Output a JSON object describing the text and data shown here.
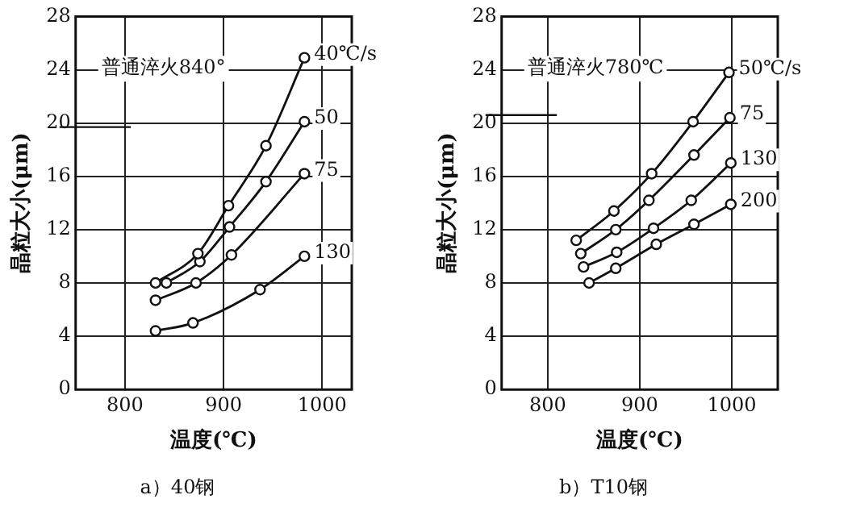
{
  "chart_data": [
    {
      "type": "line",
      "title": "a）40钢",
      "xlabel": "温度(℃)",
      "ylabel": "晶粒大小(μm)",
      "xlim": [
        750,
        1030
      ],
      "xticks": [
        800,
        900,
        1000
      ],
      "ylim": [
        0,
        28
      ],
      "yticks": [
        0,
        4,
        8,
        12,
        16,
        20,
        24,
        28
      ],
      "grid": true,
      "legend": false,
      "marker": "circle",
      "line_style": "solid",
      "ref_lines": [
        {
          "axis": "y",
          "value": 19.7,
          "label": "普通淬火840°"
        }
      ],
      "series": [
        {
          "name": "40℃/s",
          "color": "#111111",
          "x": [
            831,
            874,
            905,
            943,
            982
          ],
          "values": [
            8.0,
            10.2,
            13.8,
            18.3,
            24.9
          ]
        },
        {
          "name": "50",
          "color": "#111111",
          "x": [
            842,
            876,
            906,
            943,
            982
          ],
          "values": [
            8.0,
            9.6,
            12.2,
            15.6,
            20.1
          ]
        },
        {
          "name": "75",
          "color": "#111111",
          "x": [
            831,
            872,
            908,
            982
          ],
          "values": [
            6.7,
            8.0,
            10.1,
            16.2
          ]
        },
        {
          "name": "130",
          "color": "#111111",
          "x": [
            831,
            869,
            937,
            982
          ],
          "values": [
            4.4,
            5.0,
            7.5,
            10.0
          ]
        }
      ]
    },
    {
      "type": "line",
      "title": "b）T10钢",
      "xlabel": "温度(℃)",
      "ylabel": "晶粒大小(μm)",
      "xlim": [
        750,
        1050
      ],
      "xticks": [
        800,
        900,
        1000
      ],
      "ylim": [
        0,
        28
      ],
      "yticks": [
        0,
        4,
        8,
        12,
        16,
        20,
        24,
        28
      ],
      "grid": true,
      "legend": false,
      "marker": "circle",
      "line_style": "solid",
      "ref_lines": [
        {
          "axis": "y",
          "value": 20.6,
          "label": "普通淬火780℃"
        }
      ],
      "series": [
        {
          "name": "50℃/s",
          "color": "#111111",
          "x": [
            831,
            872,
            913,
            958,
            997
          ],
          "values": [
            11.2,
            13.4,
            16.2,
            20.1,
            23.8
          ]
        },
        {
          "name": "75",
          "color": "#111111",
          "x": [
            836,
            874,
            910,
            959,
            998
          ],
          "values": [
            10.2,
            12.0,
            14.2,
            17.6,
            20.4
          ]
        },
        {
          "name": "130",
          "color": "#111111",
          "x": [
            839,
            875,
            915,
            956,
            999
          ],
          "values": [
            9.2,
            10.3,
            12.1,
            14.2,
            17.0
          ]
        },
        {
          "name": "200",
          "color": "#111111",
          "x": [
            845,
            874,
            918,
            959,
            999
          ],
          "values": [
            8.0,
            9.1,
            10.9,
            12.4,
            13.9
          ]
        }
      ]
    }
  ]
}
